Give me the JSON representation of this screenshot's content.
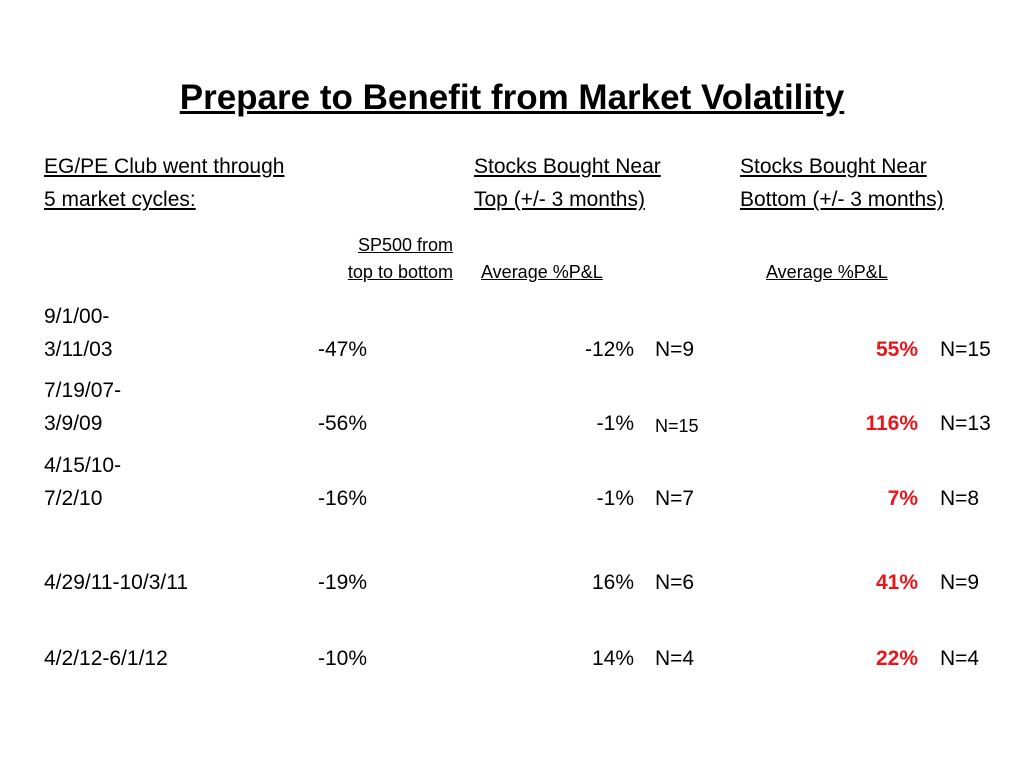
{
  "title": "Prepare to Benefit from Market Volatility",
  "headers": {
    "col1_line1": "EG/PE Club went through",
    "col1_line2": "5 market cycles:",
    "col2_line1": "Stocks Bought Near",
    "col2_line2": "Top (+/- 3 months)",
    "col3_line1": "Stocks Bought Near",
    "col3_line2": "Bottom (+/- 3 months)"
  },
  "subheaders": {
    "sp500_line1": "SP500 from",
    "sp500_line2": "top to bottom",
    "top_avg": "Average %P&L",
    "bottom_avg": "Average %P&L"
  },
  "rows": [
    {
      "period_line1": "9/1/00-",
      "period_line2": "3/11/03",
      "sp500": "-47%",
      "top_pl": "-12%",
      "top_n": "N=9",
      "bottom_pl": "55%",
      "bottom_n": "N=15"
    },
    {
      "period_line1": "7/19/07-",
      "period_line2": "3/9/09",
      "sp500": "-56%",
      "top_pl": "-1%",
      "top_n": "N=15",
      "bottom_pl": "116%",
      "bottom_n": "N=13"
    },
    {
      "period_line1": "4/15/10-",
      "period_line2": "7/2/10",
      "sp500": "-16%",
      "top_pl": "-1%",
      "top_n": "N=7",
      "bottom_pl": "7%",
      "bottom_n": "N=8"
    },
    {
      "period_line1": "",
      "period_line2": "4/29/11-10/3/11",
      "sp500": "-19%",
      "top_pl": "16%",
      "top_n": "N=6",
      "bottom_pl": "41%",
      "bottom_n": "N=9"
    },
    {
      "period_line1": "",
      "period_line2": "4/2/12-6/1/12",
      "sp500": "-10%",
      "top_pl": "14%",
      "top_n": "N=4",
      "bottom_pl": "22%",
      "bottom_n": "N=4"
    }
  ],
  "colors": {
    "highlight": "#e8161a",
    "text": "#000000",
    "background": "#ffffff"
  }
}
